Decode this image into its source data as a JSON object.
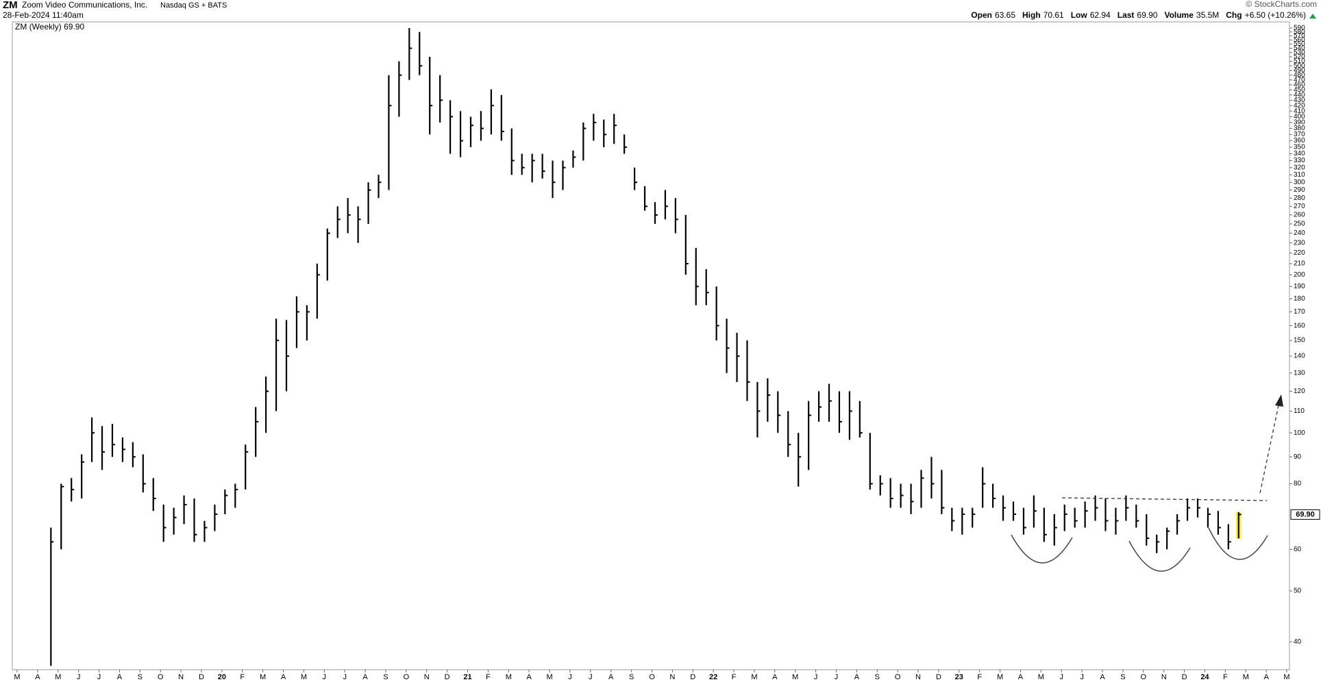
{
  "header": {
    "symbol": "ZM",
    "name": "Zoom Video Communications, Inc.",
    "exchange": "Nasdaq GS + BATS",
    "timestamp": "28-Feb-2024 11:40am",
    "source": "© StockCharts.com",
    "quote": [
      {
        "label": "Open",
        "value": "63.65"
      },
      {
        "label": "High",
        "value": "70.61"
      },
      {
        "label": "Low",
        "value": "62.94"
      },
      {
        "label": "Last",
        "value": "69.90"
      },
      {
        "label": "Volume",
        "value": "35.5M"
      },
      {
        "label": "Chg",
        "value": "+6.50 (+10.26%)"
      }
    ]
  },
  "chart_data": {
    "type": "ohlc",
    "log_scale": true,
    "categories": [
      "M",
      null,
      "A",
      null,
      "M",
      null,
      "J",
      null,
      "J",
      null,
      "A",
      null,
      "S",
      null,
      "O",
      null,
      "N",
      null,
      "D",
      null,
      "20",
      null,
      "F",
      null,
      "M",
      null,
      "A",
      null,
      "M",
      null,
      "J",
      null,
      "J",
      null,
      "A",
      null,
      "S",
      null,
      "O",
      null,
      "N",
      null,
      "D",
      null,
      "21",
      null,
      "F",
      null,
      "M",
      null,
      "A",
      null,
      "M",
      null,
      "J",
      null,
      "J",
      null,
      "A",
      null,
      "S",
      null,
      "O",
      null,
      "N",
      null,
      "D",
      null,
      "22",
      null,
      "F",
      null,
      "M",
      null,
      "A",
      null,
      "M",
      null,
      "J",
      null,
      "J",
      null,
      "A",
      null,
      "S",
      null,
      "O",
      null,
      "N",
      null,
      "D",
      null,
      "23",
      null,
      "F",
      null,
      "M",
      null,
      "A",
      null,
      "M",
      null,
      "J",
      null,
      "J",
      null,
      "A",
      null,
      "S",
      null,
      "O",
      null,
      "N",
      null,
      "D",
      null,
      "24",
      null,
      "F",
      null,
      "M",
      null,
      "A",
      null,
      "M",
      null
    ],
    "series": [
      {
        "name": "ZM (Weekly) 69.90",
        "color": "#000000",
        "high": [
          null,
          null,
          null,
          66,
          80,
          82,
          91,
          107,
          103,
          104,
          98,
          96,
          91,
          82,
          73,
          72,
          76,
          75,
          68,
          73,
          78,
          80,
          95,
          112,
          128,
          165,
          164,
          182,
          175,
          210,
          245,
          270,
          280,
          270,
          300,
          310,
          480,
          510,
          590,
          580,
          520,
          480,
          430,
          410,
          400,
          410,
          451,
          440,
          380,
          340,
          340,
          340,
          330,
          330,
          345,
          390,
          405,
          395,
          405,
          370,
          320,
          295,
          275,
          290,
          280,
          260,
          225,
          205,
          190,
          165,
          155,
          150,
          125,
          127,
          120,
          110,
          100,
          115,
          120,
          124,
          120,
          120,
          115,
          100,
          83,
          82,
          80,
          80,
          85,
          90,
          85,
          72,
          72,
          72,
          86,
          80,
          76,
          74,
          72,
          76,
          72,
          70,
          73,
          72,
          74,
          76,
          75,
          72,
          76,
          73,
          70,
          64,
          66,
          70,
          75,
          75,
          72,
          71,
          67,
          70.61,
          null,
          null,
          null,
          null,
          null,
          null
        ],
        "low": [
          null,
          null,
          null,
          36,
          60,
          74,
          75,
          88,
          85,
          90,
          88,
          86,
          77,
          71,
          62,
          64,
          67,
          62,
          62,
          65,
          70,
          72,
          78,
          90,
          100,
          110,
          120,
          145,
          150,
          165,
          195,
          235,
          240,
          230,
          250,
          280,
          290,
          400,
          470,
          480,
          370,
          390,
          340,
          335,
          350,
          360,
          370,
          360,
          310,
          310,
          300,
          305,
          280,
          290,
          320,
          330,
          360,
          350,
          355,
          340,
          290,
          265,
          250,
          255,
          240,
          200,
          175,
          175,
          150,
          130,
          125,
          115,
          98,
          105,
          100,
          90,
          79,
          85,
          105,
          105,
          100,
          97,
          98,
          78,
          76,
          72,
          72,
          70,
          72,
          75,
          70,
          65,
          64,
          66,
          72,
          72,
          68,
          68,
          64,
          66,
          62,
          61,
          65,
          66,
          66,
          68,
          65,
          64,
          68,
          66,
          61,
          59,
          60,
          64,
          68,
          69,
          66,
          64,
          60,
          62.94,
          null,
          null,
          null,
          null,
          null,
          null
        ],
        "close": [
          null,
          null,
          null,
          62,
          79,
          78,
          88,
          100,
          92,
          95,
          93,
          90,
          80,
          75,
          66,
          69,
          73,
          64,
          66,
          70,
          76,
          78,
          92,
          105,
          120,
          150,
          140,
          170,
          170,
          200,
          240,
          255,
          260,
          255,
          290,
          300,
          420,
          480,
          540,
          500,
          420,
          430,
          400,
          360,
          385,
          380,
          420,
          375,
          330,
          320,
          330,
          315,
          300,
          320,
          335,
          380,
          390,
          370,
          385,
          350,
          300,
          270,
          260,
          270,
          255,
          210,
          190,
          185,
          160,
          145,
          140,
          125,
          110,
          118,
          108,
          95,
          90,
          108,
          112,
          115,
          105,
          110,
          100,
          80,
          80,
          75,
          76,
          74,
          82,
          80,
          72,
          68,
          70,
          70,
          80,
          75,
          72,
          70,
          66,
          71,
          64,
          66,
          70,
          68,
          71,
          72,
          68,
          68,
          72,
          68,
          63,
          62,
          65,
          68,
          72,
          72,
          70,
          66,
          62,
          69.9,
          null,
          null,
          null,
          null,
          null,
          null
        ]
      }
    ],
    "last_value": 69.9,
    "last_value_label": "69.90",
    "ylim": [
      35.4,
      590
    ],
    "yticks": [
      40,
      50,
      60,
      80,
      90,
      100,
      110,
      120,
      130,
      140,
      150,
      160,
      170,
      180,
      190,
      200,
      210,
      220,
      230,
      240,
      250,
      260,
      270,
      280,
      290,
      300,
      310,
      320,
      330,
      340,
      350,
      360,
      370,
      380,
      390,
      400,
      410,
      420,
      430,
      440,
      450,
      460,
      470,
      480,
      490,
      500,
      510,
      520,
      530,
      540,
      550,
      560,
      570,
      580,
      590
    ]
  }
}
